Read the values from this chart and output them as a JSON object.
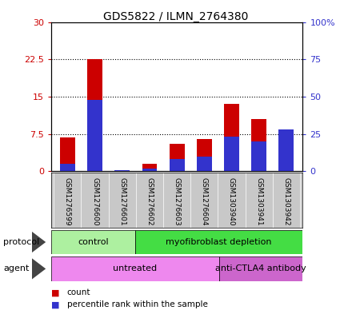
{
  "title": "GDS5822 / ILMN_2764380",
  "samples": [
    "GSM1276599",
    "GSM1276600",
    "GSM1276601",
    "GSM1276602",
    "GSM1276603",
    "GSM1276604",
    "GSM1303940",
    "GSM1303941",
    "GSM1303942"
  ],
  "count_values": [
    6.8,
    22.5,
    0.1,
    1.5,
    5.5,
    6.5,
    13.5,
    10.5,
    7.5
  ],
  "percentile_values_right": [
    5.0,
    48.0,
    0.5,
    1.5,
    8.0,
    10.0,
    23.0,
    20.0,
    28.0
  ],
  "count_color": "#cc0000",
  "percentile_color": "#3333cc",
  "ylim_left": [
    0,
    30
  ],
  "ylim_right": [
    0,
    100
  ],
  "yticks_left": [
    0,
    7.5,
    15,
    22.5,
    30
  ],
  "ytick_labels_left": [
    "0",
    "7.5",
    "15",
    "22.5",
    "30"
  ],
  "yticks_right": [
    0,
    25,
    50,
    75,
    100
  ],
  "ytick_labels_right": [
    "0",
    "25",
    "50",
    "75",
    "100%"
  ],
  "protocol_groups": [
    {
      "label": "control",
      "start": 0,
      "end": 3,
      "color": "#adf0a0"
    },
    {
      "label": "myofibroblast depletion",
      "start": 3,
      "end": 9,
      "color": "#44dd44"
    }
  ],
  "agent_groups": [
    {
      "label": "untreated",
      "start": 0,
      "end": 6,
      "color": "#ee88ee"
    },
    {
      "label": "anti-CTLA4 antibody",
      "start": 6,
      "end": 9,
      "color": "#cc66cc"
    }
  ],
  "protocol_label": "protocol",
  "agent_label": "agent",
  "legend_count": "count",
  "legend_percentile": "percentile rank within the sample",
  "grid_color": "#000000",
  "axis_bg_color": "#c8c8c8",
  "plot_bg_color": "#ffffff"
}
